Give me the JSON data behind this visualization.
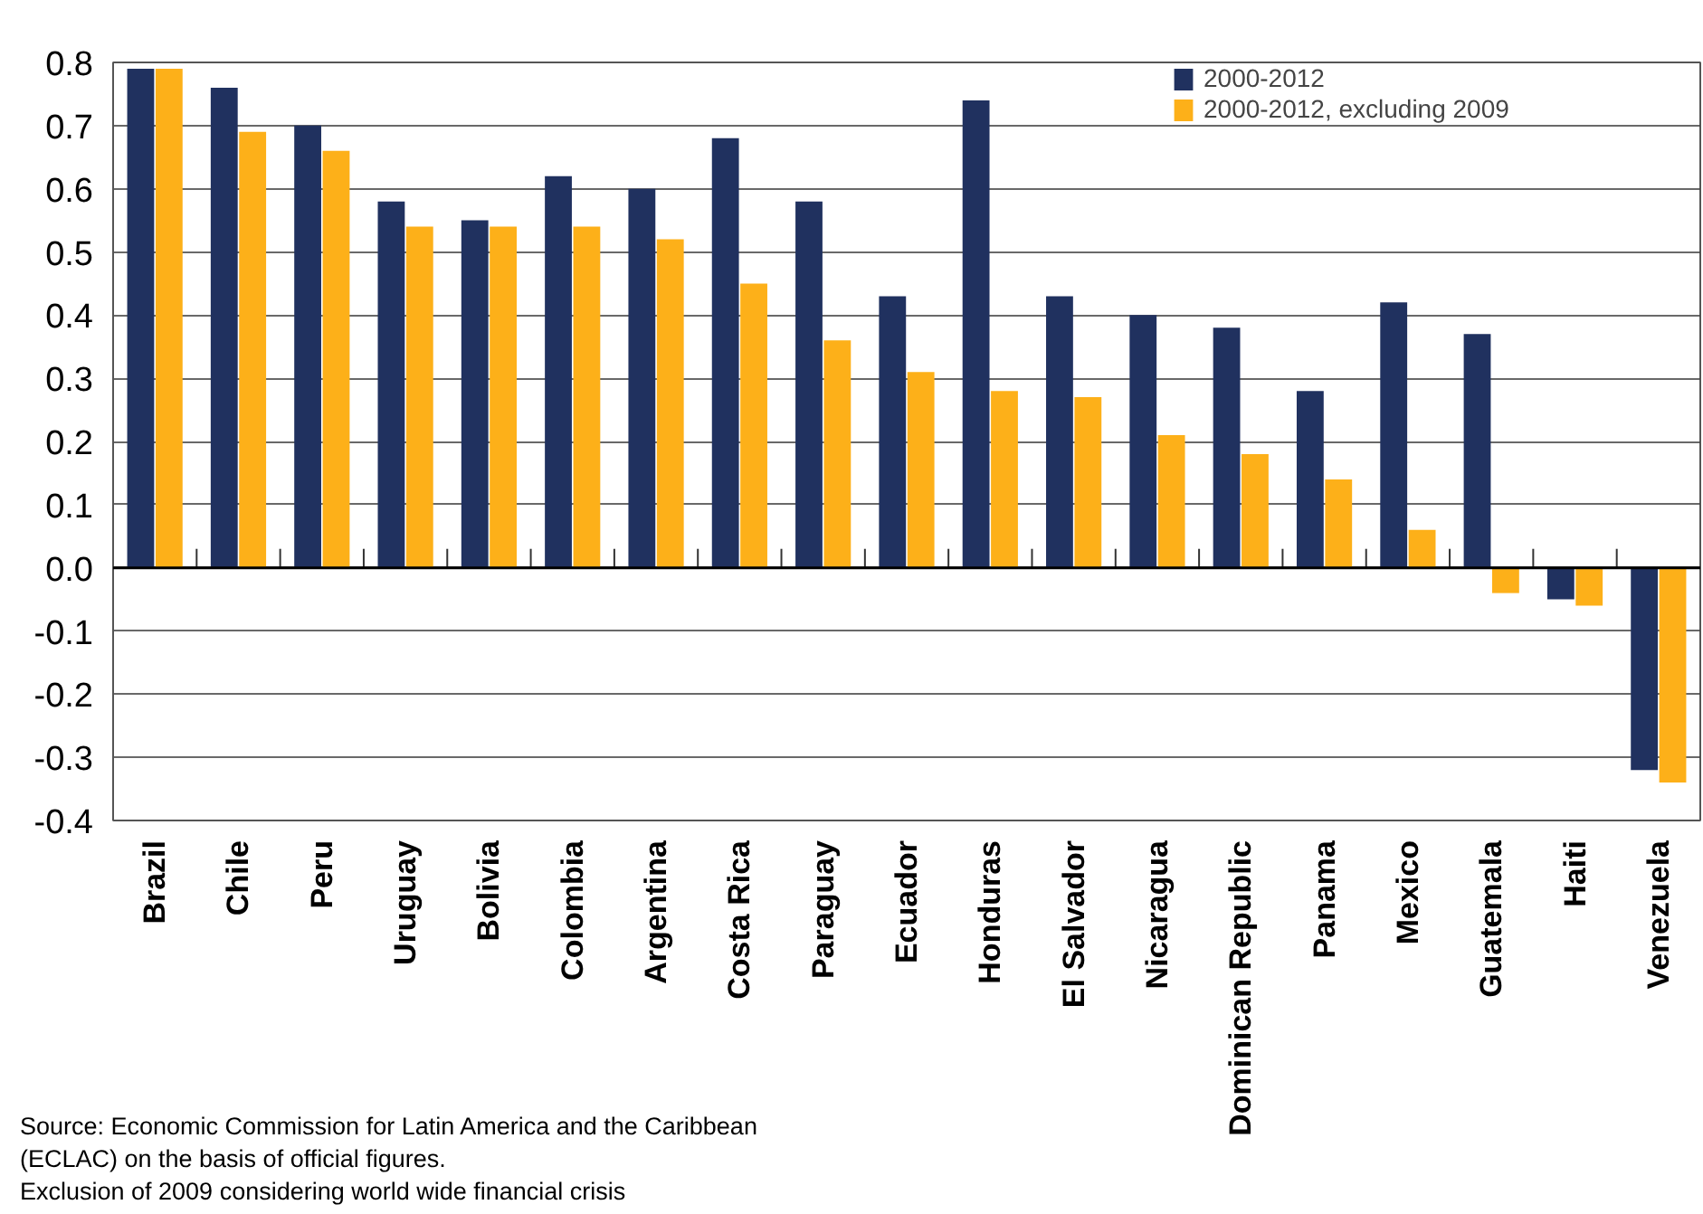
{
  "chart_data": {
    "type": "bar",
    "categories": [
      "Brazil",
      "Chile",
      "Peru",
      "Uruguay",
      "Bolivia",
      "Colombia",
      "Argentina",
      "Costa Rica",
      "Paraguay",
      "Ecuador",
      "Honduras",
      "El Salvador",
      "Nicaragua",
      "Dominican Republic",
      "Panama",
      "Mexico",
      "Guatemala",
      "Haiti",
      "Venezuela"
    ],
    "series": [
      {
        "name": "2000-2012",
        "color": "#20315f",
        "values": [
          0.79,
          0.76,
          0.7,
          0.58,
          0.55,
          0.62,
          0.6,
          0.68,
          0.58,
          0.43,
          0.74,
          0.43,
          0.4,
          0.38,
          0.28,
          0.42,
          0.37,
          -0.05,
          -0.32
        ]
      },
      {
        "name": "2000-2012, excluding 2009",
        "color": "#fdb019",
        "values": [
          0.79,
          0.69,
          0.66,
          0.54,
          0.54,
          0.54,
          0.52,
          0.45,
          0.36,
          0.31,
          0.28,
          0.27,
          0.21,
          0.18,
          0.14,
          0.06,
          -0.04,
          -0.06,
          -0.34
        ]
      }
    ],
    "ylim": [
      -0.4,
      0.8
    ],
    "yticks": [
      {
        "value": -0.4,
        "label": "-0.4"
      },
      {
        "value": -0.3,
        "label": "-0.3"
      },
      {
        "value": -0.2,
        "label": "-0.2"
      },
      {
        "value": -0.1,
        "label": "-0.1"
      },
      {
        "value": 0,
        "label": "0.0"
      },
      {
        "value": 0.1,
        "label": "0.1"
      },
      {
        "value": 0.2,
        "label": "0.2"
      },
      {
        "value": 0.3,
        "label": "0.3"
      },
      {
        "value": 0.4,
        "label": "0.4"
      },
      {
        "value": 0.5,
        "label": "0.5"
      },
      {
        "value": 0.6,
        "label": "0.6"
      },
      {
        "value": 0.7,
        "label": "0.7"
      },
      {
        "value": 0.8,
        "label": "0.8"
      }
    ],
    "grid": "y",
    "legend": "top right",
    "annotations": [
      "Source: Economic Commission for Latin America and the Caribbean (ECLAC) on the basis of official figures.",
      "Exclusion of 2009 considering world wide financial crisis"
    ]
  }
}
